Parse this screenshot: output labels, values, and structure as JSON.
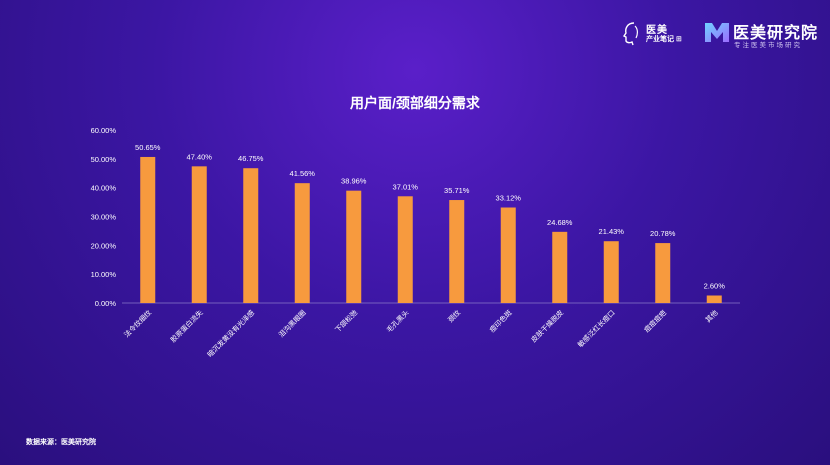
{
  "logos": {
    "left": {
      "line1": "医美",
      "line2": "产业笔记",
      "plus": "⊞"
    },
    "right": {
      "title": "医美研究院",
      "subtitle": "专注医美市场研究"
    }
  },
  "source_note": "数据来源：医美研究院",
  "chart_data": {
    "type": "bar",
    "title": "用户面/颈部细分需求",
    "xlabel": "",
    "ylabel": "",
    "ylim": [
      0,
      60
    ],
    "yticks": [
      "0.00%",
      "10.00%",
      "20.00%",
      "30.00%",
      "40.00%",
      "50.00%",
      "60.00%"
    ],
    "categories": [
      "法令纹细纹",
      "胶原蛋白流失",
      "暗沉发黄没有光泽感",
      "泪沟黑眼圈",
      "下颌松弛",
      "毛孔黑头",
      "颈纹",
      "痘印色斑",
      "皮肤干燥脱皮",
      "敏感泛红长痘口",
      "痘痘痘疤",
      "其他"
    ],
    "values": [
      50.65,
      47.4,
      46.75,
      41.56,
      38.96,
      37.01,
      35.71,
      33.12,
      24.68,
      21.43,
      20.78,
      2.6
    ],
    "value_labels": [
      "50.65%",
      "47.40%",
      "46.75%",
      "41.56%",
      "38.96%",
      "37.01%",
      "35.71%",
      "33.12%",
      "24.68%",
      "21.43%",
      "20.78%",
      "2.60%"
    ],
    "bar_color": "#f79a3e",
    "grid": false
  }
}
